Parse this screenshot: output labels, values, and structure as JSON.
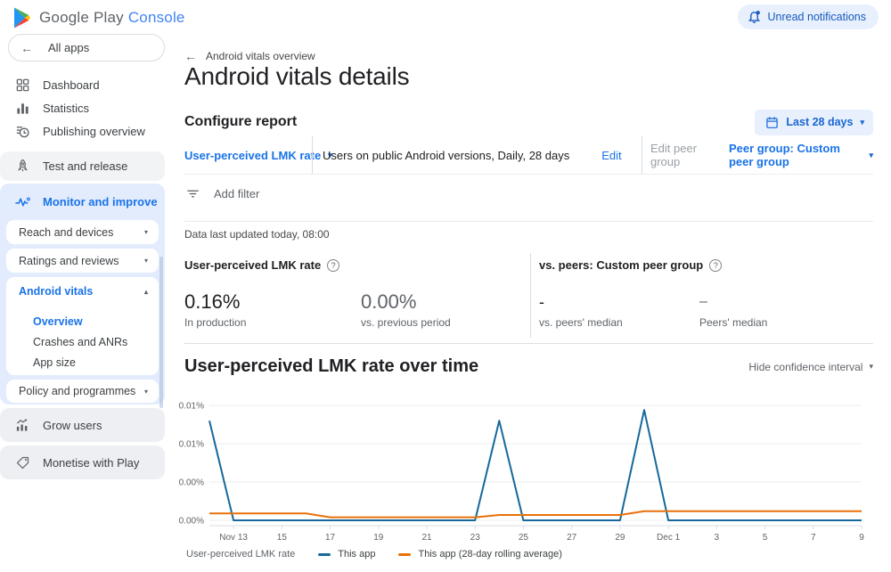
{
  "icons": {
    "back_arrow": "←",
    "caret_down": "▾",
    "caret_up": "▴",
    "help": "?"
  },
  "header": {
    "logo_part1": "Google Play",
    "logo_part2": "Console",
    "notifications_label": "Unread notifications"
  },
  "sidebar": {
    "all_apps": "All apps",
    "dashboard": "Dashboard",
    "statistics": "Statistics",
    "publishing_overview": "Publishing overview",
    "test_and_release": "Test and release",
    "monitor_and_improve": "Monitor and improve",
    "reach_and_devices": "Reach and devices",
    "ratings_and_reviews": "Ratings and reviews",
    "android_vitals": "Android vitals",
    "vitals_children": {
      "overview": "Overview",
      "crashes_and_anrs": "Crashes and ANRs",
      "app_size": "App size"
    },
    "policy_and_programmes": "Policy and programmes",
    "grow_users": "Grow users",
    "monetise_with_play": "Monetise with Play"
  },
  "main": {
    "breadcrumb": "Android vitals overview",
    "page_title": "Android vitals details",
    "configure": {
      "heading": "Configure report",
      "date_range_label": "Last 28 days",
      "metric_selector": "User-perceived LMK rate",
      "dimensions_summary": "Users on public Android versions, Daily, 28 days",
      "edit_label": "Edit",
      "edit_peer_group_label": "Edit peer group",
      "peer_group_label": "Peer group: Custom peer group"
    },
    "add_filter_label": "Add filter",
    "data_updated": "Data last updated today, 08:00",
    "metrics": {
      "left_header": "User-perceived LMK rate",
      "right_header": "vs. peers: Custom peer group",
      "stats": [
        {
          "value": "0.16%",
          "label": "In production"
        },
        {
          "value": "0.00%",
          "label": "vs. previous period"
        },
        {
          "value": "-",
          "label": "vs. peers' median"
        },
        {
          "value": "–",
          "label": "Peers' median"
        }
      ]
    },
    "chart_section": {
      "heading": "User-perceived LMK rate over time",
      "confidence_toggle": "Hide confidence interval",
      "legend_label": "User-perceived LMK rate"
    }
  },
  "chart_data": {
    "type": "line",
    "title": "User-perceived LMK rate over time",
    "unit": "percent",
    "x": [
      "Nov 12",
      "Nov 13",
      "Nov 14",
      "Nov 15",
      "Nov 16",
      "Nov 17",
      "Nov 18",
      "Nov 19",
      "Nov 20",
      "Nov 21",
      "Nov 22",
      "Nov 23",
      "Nov 24",
      "Nov 25",
      "Nov 26",
      "Nov 27",
      "Nov 28",
      "Nov 29",
      "Nov 30",
      "Dec 1",
      "Dec 2",
      "Dec 3",
      "Dec 4",
      "Dec 5",
      "Dec 6",
      "Dec 7",
      "Dec 8",
      "Dec 9"
    ],
    "x_tick_indices": [
      1,
      3,
      5,
      7,
      9,
      11,
      13,
      15,
      17,
      19,
      21,
      23,
      25,
      27
    ],
    "x_ticklabels": [
      "Nov 13",
      "15",
      "17",
      "19",
      "21",
      "23",
      "25",
      "27",
      "29",
      "Dec 1",
      "3",
      "5",
      "7",
      "9"
    ],
    "ylim": [
      0,
      0.0075
    ],
    "y_gridlines": [
      0,
      0.0025,
      0.005,
      0.0075
    ],
    "y_ticklabels": [
      "0.00%",
      "0.00%",
      "0.01%",
      "0.01%"
    ],
    "grid": true,
    "legend_position": "bottom",
    "series": [
      {
        "name": "This app",
        "color": "#16689b",
        "values": [
          0.0065,
          0,
          0,
          0,
          0,
          0,
          0,
          0,
          0,
          0,
          0,
          0,
          0.0065,
          0,
          0,
          0,
          0,
          0,
          0.0072,
          0,
          0,
          0,
          0,
          0,
          0,
          0,
          0,
          0
        ]
      },
      {
        "name": "This app (28-day rolling average)",
        "color": "#e8710a",
        "values": [
          0.00045,
          0.00045,
          0.00045,
          0.00045,
          0.00045,
          0.0002,
          0.0002,
          0.0002,
          0.0002,
          0.0002,
          0.0002,
          0.0002,
          0.00035,
          0.00035,
          0.00035,
          0.00035,
          0.00035,
          0.00035,
          0.0006,
          0.0006,
          0.0006,
          0.0006,
          0.0006,
          0.0006,
          0.0006,
          0.0006,
          0.0006,
          0.0006
        ]
      }
    ]
  }
}
